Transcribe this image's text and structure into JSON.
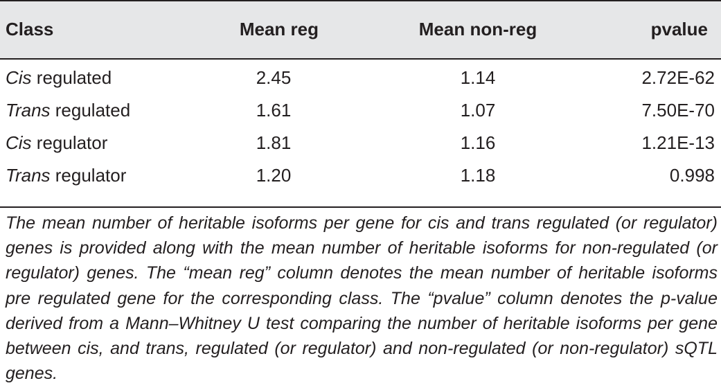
{
  "table": {
    "headers": {
      "class": "Class",
      "mean_reg": "Mean reg",
      "mean_nonreg": "Mean non-reg",
      "pvalue": "pvalue"
    },
    "rows": [
      {
        "class_italic": "Cis",
        "class_rest": " regulated",
        "mean_reg": "2.45",
        "mean_nonreg": "1.14",
        "pvalue": "2.72E-62"
      },
      {
        "class_italic": "Trans",
        "class_rest": " regulated",
        "mean_reg": "1.61",
        "mean_nonreg": "1.07",
        "pvalue": "7.50E-70"
      },
      {
        "class_italic": "Cis",
        "class_rest": " regulator",
        "mean_reg": "1.81",
        "mean_nonreg": "1.16",
        "pvalue": "1.21E-13"
      },
      {
        "class_italic": "Trans",
        "class_rest": " regulator",
        "mean_reg": "1.20",
        "mean_nonreg": "1.18",
        "pvalue": "0.998"
      }
    ]
  },
  "caption": "The mean number of heritable isoforms per gene for cis and trans regulated (or regulator) genes is provided along with the mean number of heritable isoforms for non-regulated (or regulator) genes. The “mean reg” column denotes the mean number of heritable isoforms pre regulated gene for the corresponding class. The “pvalue” column denotes the p-value derived from a Mann–Whitney U test compar­ing the number of heritable isoforms per gene between cis, and trans, regulated (or regulator) and non-regulated (or non-regulator) sQTL genes.",
  "colors": {
    "header_background": "#e6e7e8",
    "text": "#231f20",
    "rules": "#231f20"
  }
}
